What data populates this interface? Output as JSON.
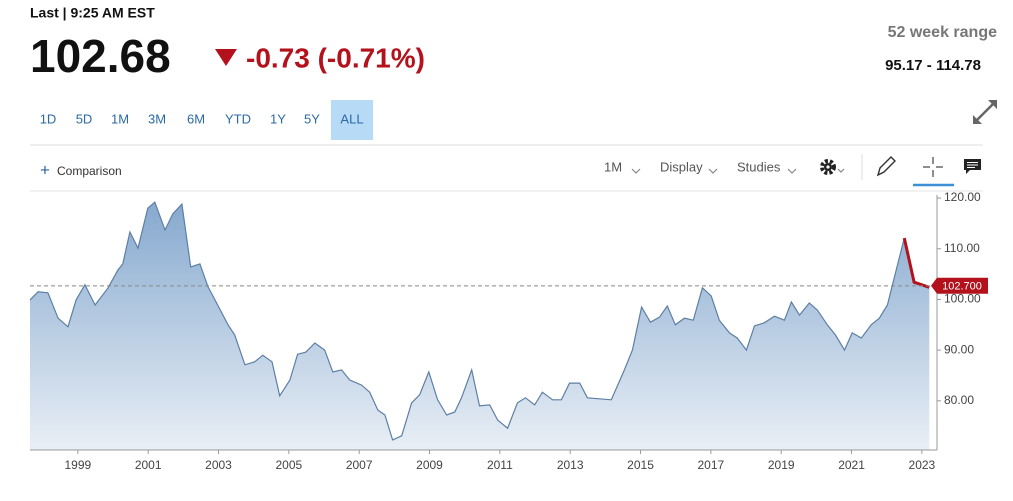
{
  "header": {
    "last": "Last | 9:25 AM EST",
    "price": "102.68",
    "change": "-0.73 (-0.71%)",
    "range_title": "52 week range",
    "range_value": "95.17 - 114.78"
  },
  "ranges": [
    "1D",
    "5D",
    "1M",
    "3M",
    "6M",
    "YTD",
    "1Y",
    "5Y",
    "ALL"
  ],
  "active_range": 8,
  "toolbar": {
    "comparison": "Comparison",
    "interval": "1M",
    "display": "Display",
    "studies": "Studies"
  },
  "chart_data": {
    "type": "area",
    "x": [
      1997.64,
      1997.87,
      1998.15,
      1998.44,
      1998.72,
      1998.95,
      1999.2,
      1999.49,
      1999.86,
      2000.14,
      2000.28,
      2000.48,
      2000.71,
      2000.99,
      2001.19,
      2001.48,
      2001.7,
      2001.96,
      2002.21,
      2002.47,
      2002.7,
      2002.9,
      2003.27,
      2003.46,
      2003.75,
      2004.03,
      2004.26,
      2004.52,
      2004.74,
      2005.03,
      2005.25,
      2005.48,
      2005.74,
      2006.02,
      2006.25,
      2006.5,
      2006.73,
      2007.07,
      2007.3,
      2007.53,
      2007.73,
      2007.95,
      2008.21,
      2008.49,
      2008.72,
      2008.98,
      2009.23,
      2009.49,
      2009.72,
      2009.91,
      2010.2,
      2010.42,
      2010.71,
      2010.94,
      2011.22,
      2011.5,
      2011.73,
      2011.99,
      2012.21,
      2012.5,
      2012.75,
      2012.98,
      2013.27,
      2013.49,
      2013.83,
      2014.17,
      2014.54,
      2014.77,
      2015.03,
      2015.28,
      2015.54,
      2015.76,
      2015.99,
      2016.25,
      2016.5,
      2016.76,
      2017.01,
      2017.24,
      2017.53,
      2017.75,
      2018.01,
      2018.24,
      2018.52,
      2018.81,
      2019.09,
      2019.29,
      2019.52,
      2019.8,
      2020.03,
      2020.31,
      2020.54,
      2020.8,
      2021.02,
      2021.28,
      2021.56,
      2021.79,
      2022.02,
      2022.27,
      2022.5,
      2022.78,
      2023.21
    ],
    "values": [
      99.9,
      101.5,
      101.3,
      96.3,
      94.6,
      99.9,
      102.9,
      98.9,
      102.3,
      105.8,
      107,
      113.3,
      110.1,
      118,
      119.2,
      113.7,
      116.9,
      118.8,
      106.4,
      107,
      102.5,
      99.9,
      95,
      93,
      87.1,
      87.7,
      89,
      87.7,
      81,
      84.1,
      89.2,
      89.6,
      91.4,
      90,
      85.7,
      86.1,
      84.1,
      83.1,
      81.7,
      78.2,
      77.2,
      72.3,
      73.1,
      79.6,
      81.2,
      85.7,
      80.2,
      77.2,
      77.8,
      80.6,
      86.1,
      79,
      79.2,
      76.2,
      74.6,
      79.6,
      80.6,
      79.2,
      81.7,
      80.2,
      80.2,
      83.5,
      83.5,
      80.6,
      80.4,
      80.2,
      86.1,
      90,
      98.5,
      95.5,
      96.5,
      98.7,
      95,
      96.3,
      95.9,
      102.3,
      100.7,
      95.9,
      93.4,
      92.4,
      90,
      94.8,
      95.4,
      96.7,
      95.9,
      99.5,
      96.9,
      99.3,
      97.9,
      95,
      93,
      90,
      93.4,
      92.4,
      95,
      96.3,
      98.9,
      105.8,
      112.1,
      103.4,
      102.4
    ],
    "color": "#5d7fa3",
    "highlight_color": "#b3121c",
    "highlight_points": 3,
    "reference_line": 102.68,
    "last_label": {
      "value": 102.7,
      "label": "102.700"
    },
    "xlim": [
      1997.64,
      2023.43
    ],
    "xticks": [
      1999,
      2001,
      2003,
      2005,
      2007,
      2009,
      2011,
      2013,
      2015,
      2017,
      2019,
      2021,
      2023
    ],
    "ylim": [
      70.3,
      120.6
    ],
    "yticks": [
      {
        "value": 80,
        "label": "80.00"
      },
      {
        "value": 90,
        "label": "90.00"
      },
      {
        "value": 100,
        "label": "100.00"
      },
      {
        "value": 110,
        "label": "110.00"
      },
      {
        "value": 120,
        "label": "120.00"
      }
    ]
  }
}
